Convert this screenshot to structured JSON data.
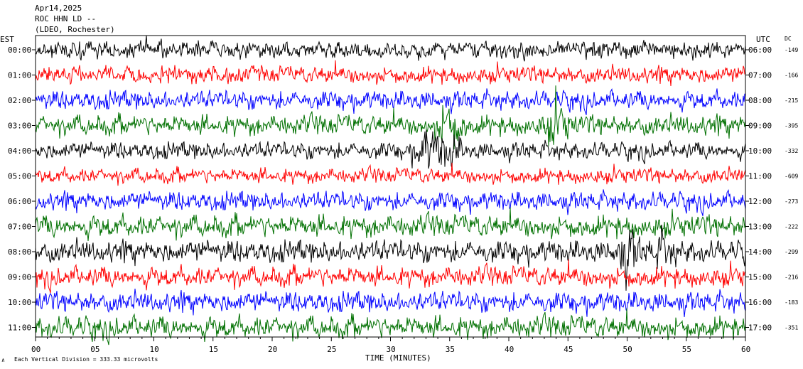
{
  "header": {
    "date": "Apr14,2025",
    "station": "ROC HHN LD --",
    "network": "(LDEO, Rochester)"
  },
  "left_axis_title": "EST",
  "right_axis_title": "UTC",
  "dc_title": "DC",
  "footer": {
    "scale_note": "Each Vertical Division =  333.33 microvolts",
    "xlabel": "TIME (MINUTES)"
  },
  "colors": [
    "#000000",
    "#ff0000",
    "#0000ff",
    "#007000"
  ],
  "chart_data": {
    "type": "line",
    "title": "Apr14,2025",
    "xlabel": "TIME (MINUTES)",
    "xlim": [
      0,
      60
    ],
    "x_ticks": [
      "00",
      "05",
      "10",
      "15",
      "20",
      "25",
      "30",
      "35",
      "40",
      "45",
      "50",
      "55",
      "60"
    ],
    "series": [
      {
        "est": "00:00",
        "utc": "06:00",
        "dc": "-149",
        "color": "#000000",
        "amplitude": 1.0,
        "events": []
      },
      {
        "est": "01:00",
        "utc": "07:00",
        "dc": "-166",
        "color": "#ff0000",
        "amplitude": 1.0,
        "events": []
      },
      {
        "est": "02:00",
        "utc": "08:00",
        "dc": "-215",
        "color": "#0000ff",
        "amplitude": 1.1,
        "events": []
      },
      {
        "est": "03:00",
        "utc": "09:00",
        "dc": "-395",
        "color": "#007000",
        "amplitude": 1.2,
        "events": [
          {
            "minute": 35,
            "size": 3.0
          },
          {
            "minute": 44,
            "size": 2.5
          }
        ]
      },
      {
        "est": "04:00",
        "utc": "10:00",
        "dc": "-332",
        "color": "#000000",
        "amplitude": 1.0,
        "events": [
          {
            "minute": 33,
            "size": 3.0
          },
          {
            "minute": 35,
            "size": 2.5
          }
        ]
      },
      {
        "est": "05:00",
        "utc": "11:00",
        "dc": "-609",
        "color": "#ff0000",
        "amplitude": 0.9,
        "events": []
      },
      {
        "est": "06:00",
        "utc": "12:00",
        "dc": "-273",
        "color": "#0000ff",
        "amplitude": 1.1,
        "events": []
      },
      {
        "est": "07:00",
        "utc": "13:00",
        "dc": "-222",
        "color": "#007000",
        "amplitude": 1.3,
        "events": []
      },
      {
        "est": "08:00",
        "utc": "14:00",
        "dc": "-299",
        "color": "#000000",
        "amplitude": 1.3,
        "events": [
          {
            "minute": 50,
            "size": 2.5
          },
          {
            "minute": 53,
            "size": 2.0
          }
        ]
      },
      {
        "est": "09:00",
        "utc": "15:00",
        "dc": "-216",
        "color": "#ff0000",
        "amplitude": 1.2,
        "events": []
      },
      {
        "est": "10:00",
        "utc": "16:00",
        "dc": "-183",
        "color": "#0000ff",
        "amplitude": 1.2,
        "events": []
      },
      {
        "est": "11:00",
        "utc": "17:00",
        "dc": "-351",
        "color": "#007000",
        "amplitude": 1.3,
        "events": []
      }
    ]
  }
}
